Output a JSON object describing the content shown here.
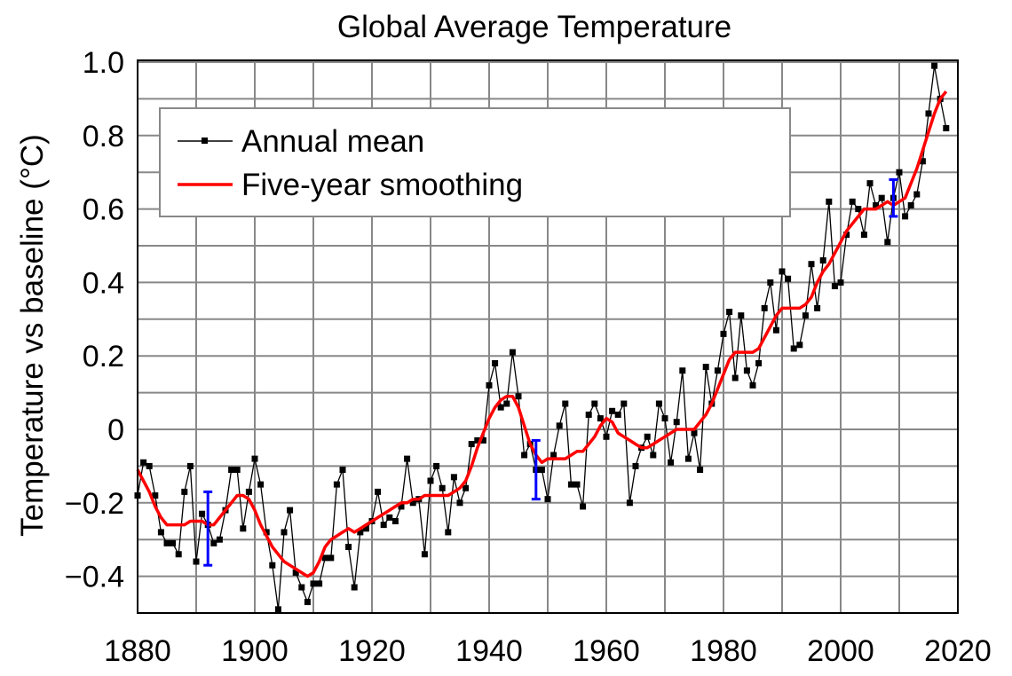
{
  "chart_data": {
    "type": "line",
    "title": "Global Average Temperature",
    "xlabel": "",
    "ylabel": "Temperature vs baseline (°C)",
    "xlim": [
      1880,
      2020
    ],
    "ylim": [
      -0.5,
      1.0
    ],
    "x_ticks": [
      1880,
      1900,
      1920,
      1940,
      1960,
      1980,
      2000,
      2020
    ],
    "y_ticks": [
      {
        "v": 1.0,
        "label": "1.0"
      },
      {
        "v": 0.8,
        "label": "0.8"
      },
      {
        "v": 0.6,
        "label": "0.6"
      },
      {
        "v": 0.4,
        "label": "0.4"
      },
      {
        "v": 0.2,
        "label": "0.2"
      },
      {
        "v": 0,
        "label": "0"
      },
      {
        "v": -0.2,
        "label": "−0.2"
      },
      {
        "v": -0.4,
        "label": "−0.4"
      }
    ],
    "grid": true,
    "legend_placement": "top-left",
    "x_start": 1880,
    "series": [
      {
        "name": "Annual mean",
        "color": "#000000",
        "marker": "square",
        "values": [
          -0.18,
          -0.09,
          -0.1,
          -0.18,
          -0.28,
          -0.31,
          -0.31,
          -0.34,
          -0.17,
          -0.1,
          -0.36,
          -0.23,
          -0.26,
          -0.31,
          -0.3,
          -0.22,
          -0.11,
          -0.11,
          -0.27,
          -0.17,
          -0.08,
          -0.15,
          -0.28,
          -0.37,
          -0.49,
          -0.28,
          -0.22,
          -0.39,
          -0.43,
          -0.47,
          -0.42,
          -0.42,
          -0.35,
          -0.35,
          -0.15,
          -0.11,
          -0.32,
          -0.43,
          -0.28,
          -0.27,
          -0.25,
          -0.17,
          -0.26,
          -0.24,
          -0.25,
          -0.21,
          -0.08,
          -0.2,
          -0.19,
          -0.34,
          -0.14,
          -0.1,
          -0.16,
          -0.28,
          -0.13,
          -0.2,
          -0.16,
          -0.04,
          -0.03,
          -0.03,
          0.12,
          0.18,
          0.06,
          0.07,
          0.21,
          0.09,
          -0.07,
          -0.04,
          -0.11,
          -0.11,
          -0.19,
          -0.07,
          0.01,
          0.07,
          -0.15,
          -0.15,
          -0.21,
          0.04,
          0.07,
          0.03,
          -0.02,
          0.05,
          0.04,
          0.07,
          -0.2,
          -0.1,
          -0.05,
          -0.02,
          -0.07,
          0.07,
          0.03,
          -0.09,
          0.02,
          0.16,
          -0.08,
          -0.01,
          -0.11,
          0.17,
          0.07,
          0.16,
          0.26,
          0.32,
          0.14,
          0.31,
          0.16,
          0.12,
          0.18,
          0.33,
          0.4,
          0.27,
          0.43,
          0.41,
          0.22,
          0.23,
          0.31,
          0.45,
          0.33,
          0.46,
          0.62,
          0.39,
          0.4,
          0.53,
          0.62,
          0.6,
          0.53,
          0.67,
          0.61,
          0.63,
          0.51,
          0.63,
          0.7,
          0.58,
          0.61,
          0.64,
          0.73,
          0.86,
          0.99,
          0.9,
          0.82
        ]
      },
      {
        "name": "Five-year smoothing",
        "color": "#ff0000",
        "values": [
          -0.11,
          -0.14,
          -0.17,
          -0.21,
          -0.24,
          -0.26,
          -0.26,
          -0.26,
          -0.26,
          -0.25,
          -0.25,
          -0.25,
          -0.26,
          -0.26,
          -0.24,
          -0.22,
          -0.2,
          -0.18,
          -0.18,
          -0.19,
          -0.22,
          -0.26,
          -0.29,
          -0.32,
          -0.34,
          -0.36,
          -0.37,
          -0.38,
          -0.39,
          -0.4,
          -0.39,
          -0.36,
          -0.32,
          -0.3,
          -0.29,
          -0.28,
          -0.27,
          -0.28,
          -0.27,
          -0.26,
          -0.25,
          -0.24,
          -0.23,
          -0.22,
          -0.21,
          -0.2,
          -0.2,
          -0.19,
          -0.19,
          -0.18,
          -0.18,
          -0.18,
          -0.18,
          -0.18,
          -0.17,
          -0.16,
          -0.14,
          -0.1,
          -0.05,
          -0.01,
          0.03,
          0.06,
          0.08,
          0.09,
          0.09,
          0.06,
          0.01,
          -0.04,
          -0.07,
          -0.09,
          -0.08,
          -0.08,
          -0.08,
          -0.08,
          -0.07,
          -0.06,
          -0.06,
          -0.04,
          -0.02,
          0.01,
          0.03,
          0.02,
          -0.01,
          -0.02,
          -0.03,
          -0.04,
          -0.05,
          -0.05,
          -0.04,
          -0.03,
          -0.02,
          -0.01,
          0.0,
          0.0,
          0.0,
          0.0,
          0.02,
          0.04,
          0.07,
          0.11,
          0.15,
          0.19,
          0.21,
          0.21,
          0.21,
          0.21,
          0.22,
          0.25,
          0.28,
          0.31,
          0.33,
          0.33,
          0.33,
          0.33,
          0.34,
          0.36,
          0.4,
          0.43,
          0.45,
          0.48,
          0.51,
          0.54,
          0.56,
          0.58,
          0.6,
          0.6,
          0.6,
          0.61,
          0.62,
          0.61,
          0.62,
          0.63,
          0.67,
          0.71,
          0.76,
          0.81,
          0.86,
          0.9,
          0.92
        ]
      }
    ],
    "error_bars": {
      "color": "#0000ff",
      "bars": [
        {
          "x": 1892,
          "low": -0.37,
          "high": -0.17
        },
        {
          "x": 1948,
          "low": -0.19,
          "high": -0.03
        },
        {
          "x": 2009,
          "low": 0.58,
          "high": 0.68
        }
      ]
    }
  }
}
